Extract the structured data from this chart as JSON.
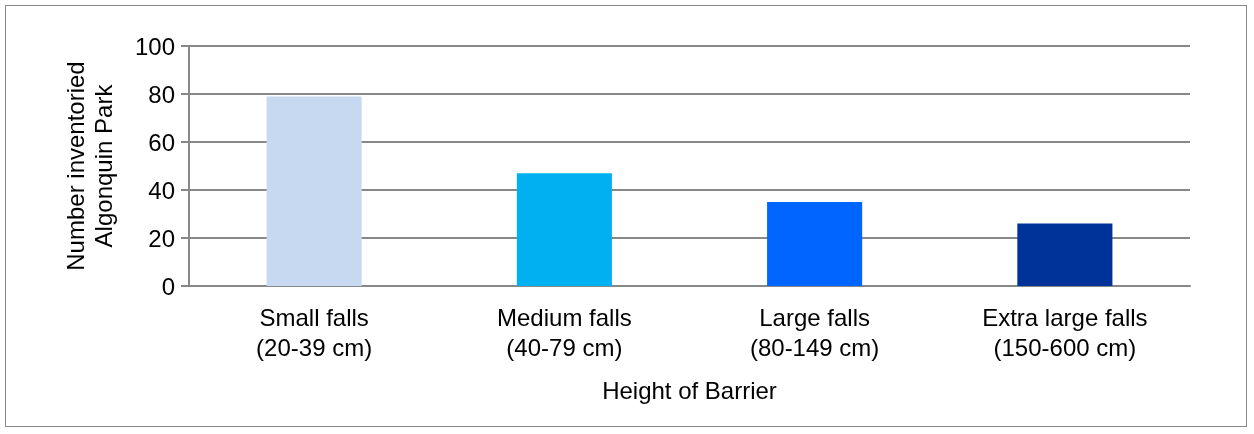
{
  "chart_data": {
    "type": "bar",
    "xlabel": "Height of Barrier",
    "ylabel": "Number inventoried\nAlgonquin Park",
    "categories": [
      "Small falls\n(20-39 cm)",
      "Medium falls\n(40-79 cm)",
      "Large falls\n(80-149 cm)",
      "Extra large falls\n(150-600 cm)"
    ],
    "values": [
      79,
      47,
      35,
      26
    ],
    "colors": [
      "#c6d9f1",
      "#00b0f0",
      "#0066ff",
      "#003399"
    ],
    "ylim": [
      0,
      100
    ],
    "yticks": [
      0,
      20,
      40,
      60,
      80,
      100
    ],
    "grid": "y"
  }
}
